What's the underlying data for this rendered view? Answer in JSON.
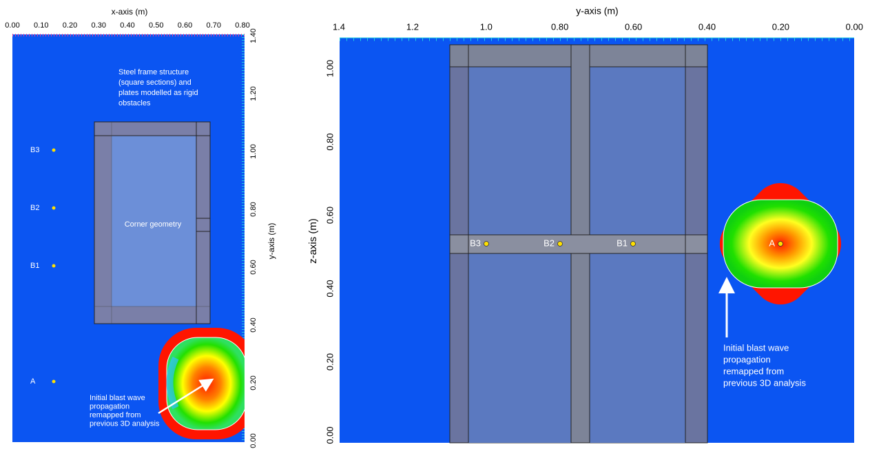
{
  "left_panel": {
    "x_axis_label": "x-axis (m)",
    "x_ticks": [
      "0.00",
      "0.10",
      "0.20",
      "0.30",
      "0.40",
      "0.50",
      "0.60",
      "0.70",
      "0.80"
    ],
    "y_axis_label": "y-axis (m)",
    "y_ticks": [
      "0.00",
      "0.20",
      "0.40",
      "0.60",
      "0.80",
      "1.00",
      "1.20",
      "1.40"
    ],
    "annotation_top": [
      "Steel frame structure",
      "(square sections) and",
      "plates modelled as rigid",
      "obstacles"
    ],
    "frame_label": "Corner geometry",
    "points": [
      "B3",
      "B2",
      "B1",
      "A"
    ],
    "annotation_blast": [
      "Initial blast wave",
      "propagation",
      "remapped from",
      "previous 3D analysis"
    ]
  },
  "right_panel": {
    "x_axis_label": "y-axis (m)",
    "x_ticks": [
      "1.4",
      "1.2",
      "1.0",
      "0.80",
      "0.60",
      "0.40",
      "0.20",
      "0.00"
    ],
    "y_axis_label": "z-axis (m)",
    "y_ticks": [
      "0.00",
      "0.20",
      "0.40",
      "0.60",
      "0.80",
      "1.00"
    ],
    "points": [
      "B3",
      "B2",
      "B1",
      "A"
    ],
    "annotation_blast": [
      "Initial blast wave",
      "propagation",
      "remapped from",
      "previous 3D analysis"
    ]
  }
}
